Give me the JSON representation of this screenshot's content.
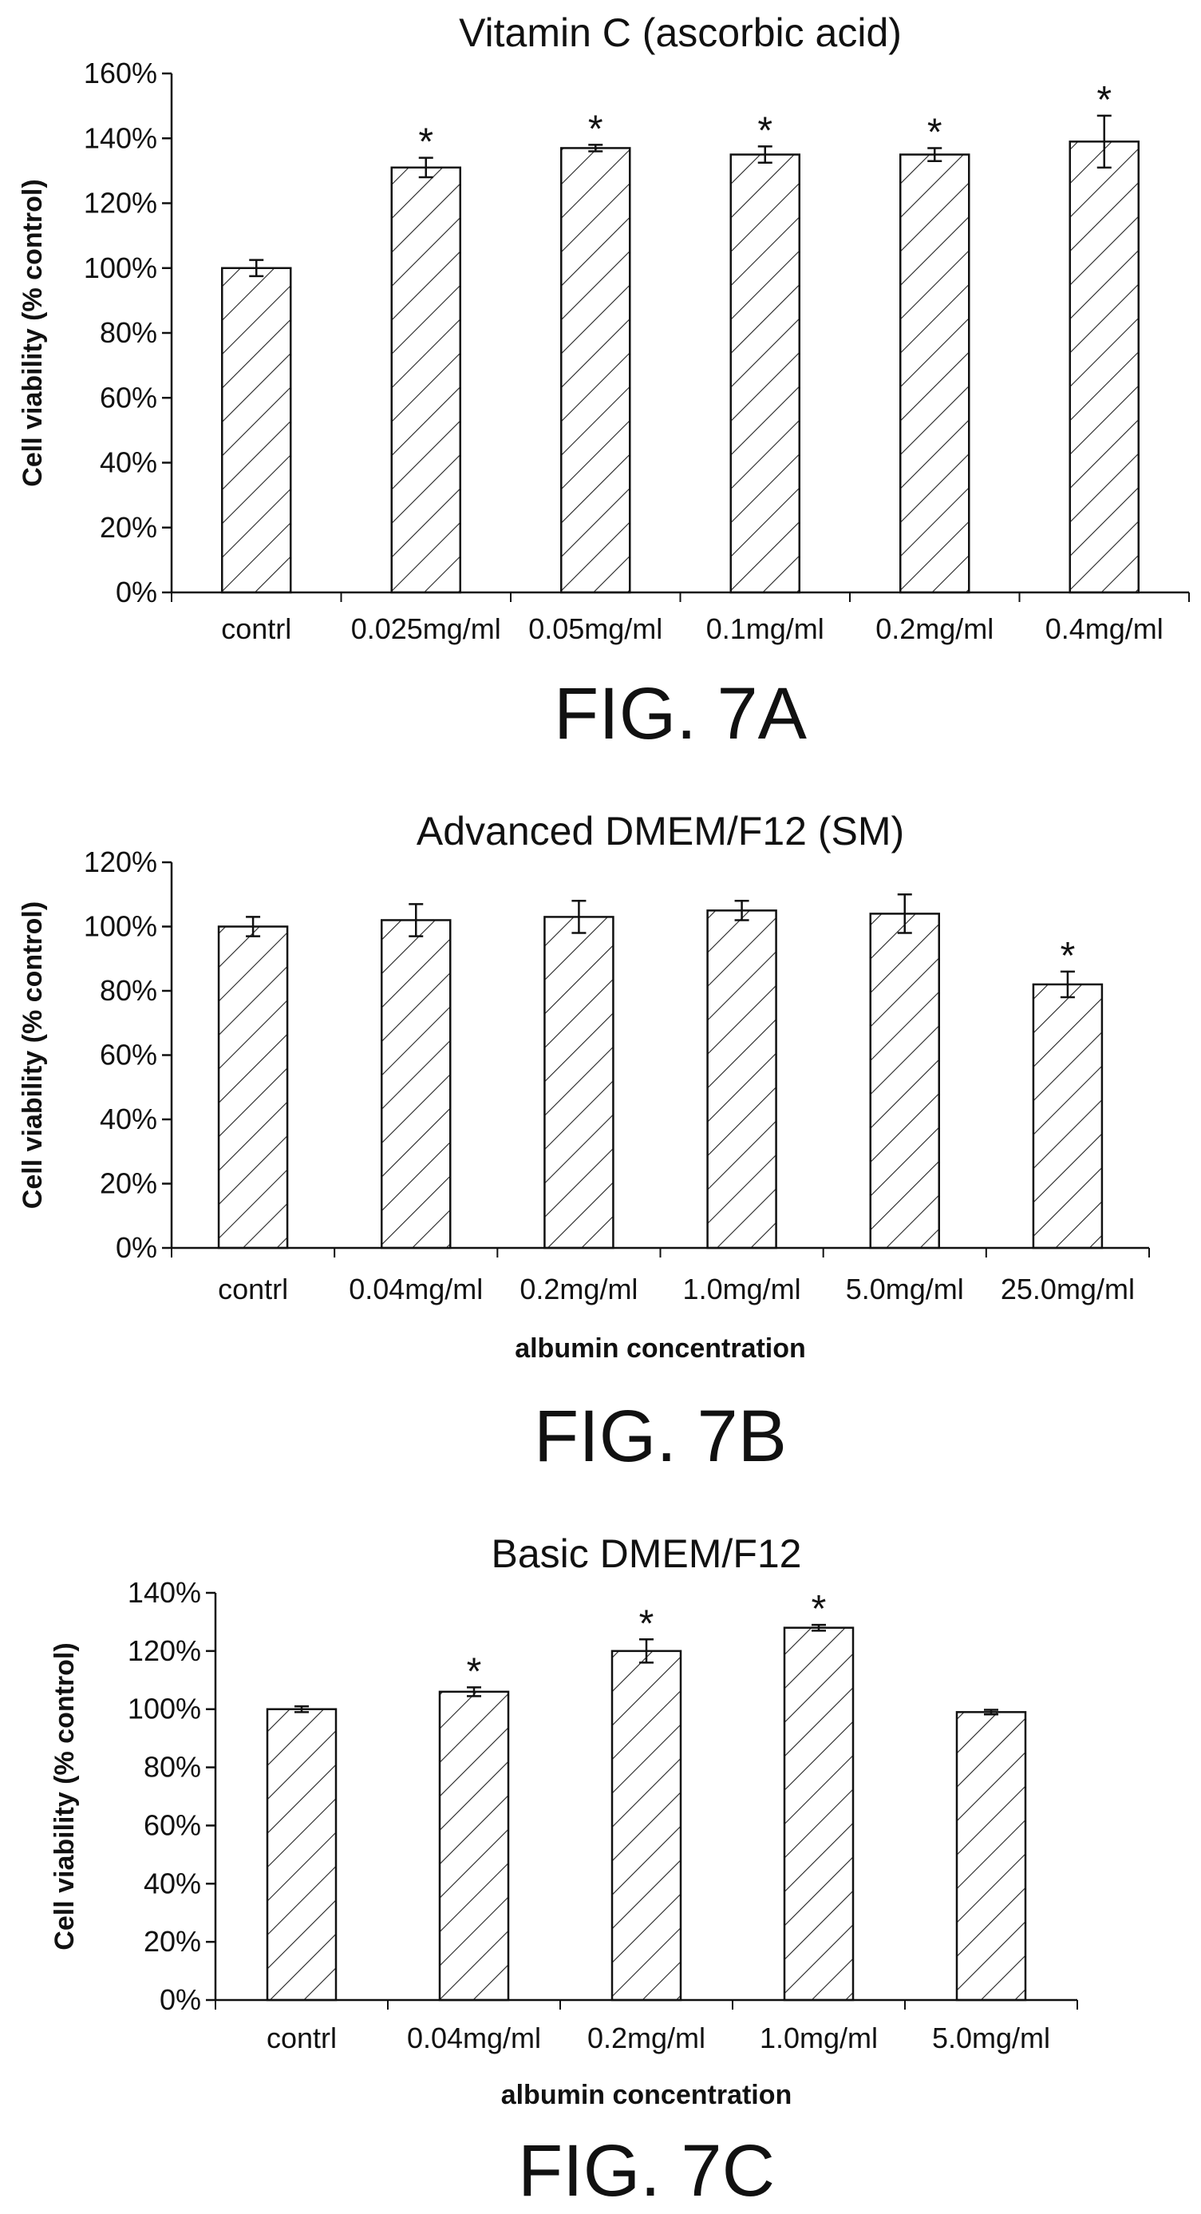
{
  "figures": [
    {
      "fig_label": "FIG. 7A",
      "chart_data": {
        "type": "bar",
        "title": "Vitamin C (ascorbic acid)",
        "ylabel": "Cell viability (% control)",
        "xlabel": "",
        "yticks": [
          "0%",
          "20%",
          "40%",
          "60%",
          "80%",
          "100%",
          "120%",
          "140%",
          "160%"
        ],
        "ylim": [
          0,
          160
        ],
        "categories": [
          "contrl",
          "0.025mg/ml",
          "0.05mg/ml",
          "0.1mg/ml",
          "0.2mg/ml",
          "0.4mg/ml"
        ],
        "values": [
          100,
          131,
          137,
          135,
          135,
          139
        ],
        "errors": [
          2.5,
          3,
          1,
          2.5,
          2,
          8
        ],
        "significant": [
          false,
          true,
          true,
          true,
          true,
          true
        ],
        "sig_marker": "*",
        "fill_pattern": "diagonal hatch"
      }
    },
    {
      "fig_label": "FIG. 7B",
      "chart_data": {
        "type": "bar",
        "title": "Advanced DMEM/F12 (SM)",
        "ylabel": "Cell viability (% control)",
        "xlabel": "albumin concentration",
        "yticks": [
          "0%",
          "20%",
          "40%",
          "60%",
          "80%",
          "100%",
          "120%"
        ],
        "ylim": [
          0,
          120
        ],
        "categories": [
          "contrl",
          "0.04mg/ml",
          "0.2mg/ml",
          "1.0mg/ml",
          "5.0mg/ml",
          "25.0mg/ml"
        ],
        "values": [
          100,
          102,
          103,
          105,
          104,
          82
        ],
        "errors": [
          3,
          5,
          5,
          3,
          6,
          4
        ],
        "significant": [
          false,
          false,
          false,
          false,
          false,
          true
        ],
        "sig_marker": "*",
        "fill_pattern": "diagonal hatch"
      }
    },
    {
      "fig_label": "FIG. 7C",
      "chart_data": {
        "type": "bar",
        "title": "Basic DMEM/F12",
        "ylabel": "Cell viability (% control)",
        "xlabel": "albumin concentration",
        "yticks": [
          "0%",
          "20%",
          "40%",
          "60%",
          "80%",
          "100%",
          "120%",
          "140%"
        ],
        "ylim": [
          0,
          140
        ],
        "categories": [
          "contrl",
          "0.04mg/ml",
          "0.2mg/ml",
          "1.0mg/ml",
          "5.0mg/ml"
        ],
        "values": [
          100,
          106,
          120,
          128,
          99
        ],
        "errors": [
          1,
          1.5,
          4,
          1,
          0.8
        ],
        "significant": [
          false,
          true,
          true,
          true,
          false
        ],
        "sig_marker": "*",
        "fill_pattern": "diagonal hatch"
      }
    }
  ]
}
